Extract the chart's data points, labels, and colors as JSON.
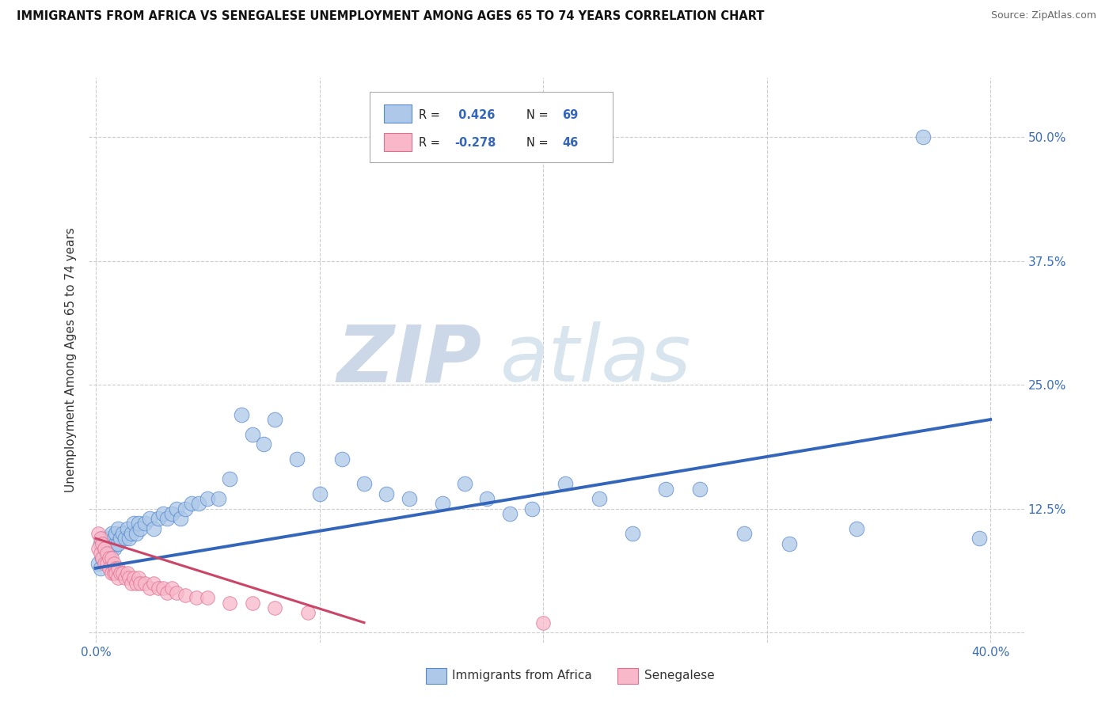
{
  "title": "IMMIGRANTS FROM AFRICA VS SENEGALESE UNEMPLOYMENT AMONG AGES 65 TO 74 YEARS CORRELATION CHART",
  "source": "Source: ZipAtlas.com",
  "ylabel": "Unemployment Among Ages 65 to 74 years",
  "xlim": [
    -0.003,
    0.415
  ],
  "ylim": [
    -0.01,
    0.56
  ],
  "xticks": [
    0.0,
    0.1,
    0.2,
    0.3,
    0.4
  ],
  "xtick_labels": [
    "0.0%",
    "",
    "",
    "",
    "40.0%"
  ],
  "ytick_labels": [
    "",
    "12.5%",
    "25.0%",
    "37.5%",
    "50.0%"
  ],
  "yticks": [
    0.0,
    0.125,
    0.25,
    0.375,
    0.5
  ],
  "legend_R_blue": "R = ",
  "legend_R_blue_val": "0.426",
  "legend_N_blue": "N = ",
  "legend_N_blue_val": "69",
  "legend_R_pink": "R = ",
  "legend_R_pink_val": "-0.278",
  "legend_N_pink": "N = ",
  "legend_N_pink_val": "46",
  "blue_color": "#adc8e8",
  "blue_edge_color": "#5588cc",
  "blue_line_color": "#3366bb",
  "pink_color": "#f8b8ca",
  "pink_edge_color": "#dd7090",
  "pink_line_color": "#cc4466",
  "watermark_zip": "ZIP",
  "watermark_atlas": "atlas",
  "watermark_color": "#dce8f0",
  "blue_scatter_x": [
    0.001,
    0.002,
    0.002,
    0.003,
    0.003,
    0.004,
    0.004,
    0.005,
    0.005,
    0.006,
    0.006,
    0.007,
    0.007,
    0.008,
    0.008,
    0.009,
    0.009,
    0.01,
    0.01,
    0.011,
    0.012,
    0.013,
    0.014,
    0.015,
    0.016,
    0.017,
    0.018,
    0.019,
    0.02,
    0.022,
    0.024,
    0.026,
    0.028,
    0.03,
    0.032,
    0.034,
    0.036,
    0.038,
    0.04,
    0.043,
    0.046,
    0.05,
    0.055,
    0.06,
    0.065,
    0.07,
    0.075,
    0.08,
    0.09,
    0.1,
    0.11,
    0.12,
    0.13,
    0.14,
    0.155,
    0.165,
    0.175,
    0.185,
    0.195,
    0.21,
    0.225,
    0.24,
    0.255,
    0.27,
    0.29,
    0.31,
    0.34,
    0.37,
    0.395
  ],
  "blue_scatter_y": [
    0.07,
    0.065,
    0.09,
    0.075,
    0.095,
    0.08,
    0.085,
    0.075,
    0.09,
    0.08,
    0.095,
    0.085,
    0.1,
    0.085,
    0.095,
    0.09,
    0.1,
    0.09,
    0.105,
    0.095,
    0.1,
    0.095,
    0.105,
    0.095,
    0.1,
    0.11,
    0.1,
    0.11,
    0.105,
    0.11,
    0.115,
    0.105,
    0.115,
    0.12,
    0.115,
    0.12,
    0.125,
    0.115,
    0.125,
    0.13,
    0.13,
    0.135,
    0.135,
    0.155,
    0.22,
    0.2,
    0.19,
    0.215,
    0.175,
    0.14,
    0.175,
    0.15,
    0.14,
    0.135,
    0.13,
    0.15,
    0.135,
    0.12,
    0.125,
    0.15,
    0.135,
    0.1,
    0.145,
    0.145,
    0.1,
    0.09,
    0.105,
    0.5,
    0.095
  ],
  "pink_scatter_x": [
    0.001,
    0.001,
    0.002,
    0.002,
    0.003,
    0.003,
    0.004,
    0.004,
    0.005,
    0.005,
    0.006,
    0.006,
    0.007,
    0.007,
    0.008,
    0.008,
    0.009,
    0.009,
    0.01,
    0.01,
    0.011,
    0.012,
    0.013,
    0.014,
    0.015,
    0.016,
    0.017,
    0.018,
    0.019,
    0.02,
    0.022,
    0.024,
    0.026,
    0.028,
    0.03,
    0.032,
    0.034,
    0.036,
    0.04,
    0.045,
    0.05,
    0.06,
    0.07,
    0.08,
    0.095,
    0.2
  ],
  "pink_scatter_y": [
    0.1,
    0.085,
    0.095,
    0.08,
    0.09,
    0.075,
    0.085,
    0.07,
    0.08,
    0.07,
    0.075,
    0.065,
    0.075,
    0.06,
    0.07,
    0.06,
    0.065,
    0.06,
    0.065,
    0.055,
    0.06,
    0.06,
    0.055,
    0.06,
    0.055,
    0.05,
    0.055,
    0.05,
    0.055,
    0.05,
    0.05,
    0.045,
    0.05,
    0.045,
    0.045,
    0.04,
    0.045,
    0.04,
    0.038,
    0.035,
    0.035,
    0.03,
    0.03,
    0.025,
    0.02,
    0.01
  ],
  "blue_line_x": [
    0.0,
    0.4
  ],
  "blue_line_y": [
    0.065,
    0.215
  ],
  "pink_line_x": [
    0.0,
    0.12
  ],
  "pink_line_y": [
    0.095,
    0.01
  ]
}
